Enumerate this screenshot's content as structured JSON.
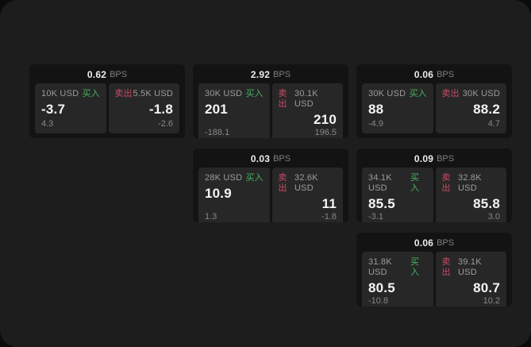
{
  "colors": {
    "panel_bg": "#1d1d1d",
    "card_bg": "#131313",
    "tile_bg": "#272727",
    "buy": "#43b45f",
    "sell": "#ca4a65"
  },
  "labels": {
    "bps": "BPS",
    "buy": "买入",
    "sell": "卖出"
  },
  "cards": [
    {
      "bps": "0.62",
      "buy": {
        "amount": "10K USD",
        "value": "-3.7",
        "delta": "4.3"
      },
      "sell": {
        "amount": "5.5K USD",
        "value": "-1.8",
        "delta": "-2.6"
      }
    },
    {
      "bps": "2.92",
      "buy": {
        "amount": "30K USD",
        "value": "201",
        "delta": "-188.1"
      },
      "sell": {
        "amount": "30.1K USD",
        "value": "210",
        "delta": "196.5"
      }
    },
    {
      "bps": "0.06",
      "buy": {
        "amount": "30K USD",
        "value": "88",
        "delta": "-4.9"
      },
      "sell": {
        "amount": "30K USD",
        "value": "88.2",
        "delta": "4.7"
      }
    },
    {
      "bps": "0.03",
      "buy": {
        "amount": "28K USD",
        "value": "10.9",
        "delta": "1.3"
      },
      "sell": {
        "amount": "32.6K USD",
        "value": "11",
        "delta": "-1.8"
      }
    },
    {
      "bps": "0.09",
      "buy": {
        "amount": "34.1K USD",
        "value": "85.5",
        "delta": "-3.1"
      },
      "sell": {
        "amount": "32.8K USD",
        "value": "85.8",
        "delta": "3.0"
      }
    },
    {
      "bps": "0.06",
      "buy": {
        "amount": "31.8K USD",
        "value": "80.5",
        "delta": "-10.8"
      },
      "sell": {
        "amount": "39.1K USD",
        "value": "80.7",
        "delta": "10.2"
      }
    }
  ]
}
